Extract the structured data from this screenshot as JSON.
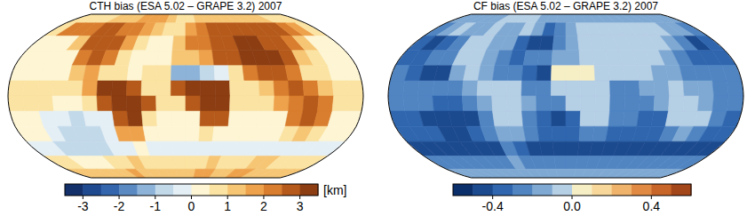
{
  "chart_data": [
    {
      "type": "heatmap",
      "title": "CTH bias (ESA 5.02 – GRAPE 3.2) 2007",
      "x": [
        -172.5,
        -157.5,
        -142.5,
        -127.5,
        -112.5,
        -97.5,
        -82.5,
        -67.5,
        -52.5,
        -37.5,
        -22.5,
        -7.5,
        7.5,
        22.5,
        37.5,
        52.5,
        67.5,
        82.5,
        97.5,
        112.5,
        127.5,
        142.5,
        157.5,
        172.5
      ],
      "y": [
        82.5,
        67.5,
        52.5,
        37.5,
        22.5,
        7.5,
        -7.5,
        -22.5,
        -37.5,
        -52.5,
        -67.5,
        -82.5
      ],
      "values": [
        [
          0.6,
          0.6,
          0.7,
          0.8,
          1.0,
          1.2,
          1.3,
          1.5,
          1.8,
          1.6,
          1.0,
          0.8,
          0.8,
          1.0,
          1.2,
          1.2,
          1.2,
          1.3,
          1.3,
          1.2,
          1.0,
          0.8,
          0.7,
          0.6
        ],
        [
          0.8,
          2.0,
          2.2,
          2.3,
          2.5,
          2.5,
          2.2,
          2.0,
          1.8,
          1.2,
          0.5,
          0.6,
          1.8,
          2.3,
          2.5,
          2.6,
          2.7,
          2.8,
          2.8,
          2.7,
          2.6,
          2.4,
          1.8,
          0.8
        ],
        [
          0.3,
          0.2,
          0.3,
          1.0,
          2.5,
          2.8,
          2.6,
          1.8,
          0.5,
          0.3,
          0.3,
          1.2,
          2.0,
          2.4,
          2.6,
          2.8,
          3.0,
          3.0,
          2.8,
          2.7,
          2.2,
          1.0,
          0.4,
          0.3
        ],
        [
          0.3,
          0.2,
          0.2,
          0.4,
          2.2,
          2.6,
          2.4,
          0.8,
          0.4,
          0.3,
          0.3,
          1.2,
          1.0,
          1.5,
          2.5,
          2.8,
          3.2,
          3.2,
          3.0,
          2.6,
          1.2,
          0.5,
          0.3,
          0.3
        ],
        [
          0.3,
          0.3,
          0.2,
          0.3,
          1.2,
          1.8,
          0.8,
          0.5,
          0.4,
          0.5,
          0.6,
          -1.2,
          -1.5,
          -1.0,
          -0.5,
          0.6,
          2.0,
          2.8,
          2.6,
          2.0,
          0.8,
          0.5,
          0.4,
          0.3
        ],
        [
          0.5,
          0.6,
          0.6,
          0.5,
          0.6,
          1.5,
          3.0,
          3.2,
          2.8,
          0.9,
          0.8,
          2.8,
          3.2,
          3.3,
          3.0,
          0.9,
          0.8,
          1.2,
          2.2,
          2.5,
          2.2,
          1.2,
          0.8,
          0.6
        ],
        [
          0.6,
          0.5,
          0.5,
          0.4,
          0.4,
          0.5,
          2.5,
          3.4,
          3.3,
          2.8,
          0.6,
          0.5,
          2.8,
          3.3,
          3.0,
          0.7,
          0.6,
          0.6,
          1.5,
          2.2,
          2.5,
          2.0,
          0.9,
          0.6
        ],
        [
          0.3,
          0.2,
          -0.3,
          -0.5,
          -0.6,
          -0.5,
          -0.2,
          2.8,
          3.0,
          0.5,
          0.2,
          0.1,
          0.3,
          2.5,
          2.8,
          0.4,
          0.3,
          0.2,
          0.3,
          2.2,
          2.6,
          2.4,
          0.4,
          0.3
        ],
        [
          0.2,
          0.0,
          -0.3,
          -0.6,
          -0.7,
          -0.6,
          -0.4,
          1.5,
          1.8,
          0.3,
          0.2,
          0.2,
          0.3,
          0.5,
          0.4,
          0.3,
          0.3,
          0.2,
          0.3,
          0.5,
          1.2,
          0.6,
          0.3,
          0.2
        ],
        [
          -0.3,
          -0.4,
          -0.6,
          -0.7,
          -0.8,
          -0.7,
          -0.5,
          -0.2,
          0.2,
          -0.2,
          -0.3,
          -0.4,
          -0.4,
          -0.5,
          -0.4,
          -0.3,
          -0.4,
          -0.5,
          -0.5,
          -0.4,
          -0.3,
          -0.2,
          -0.3,
          -0.3
        ],
        [
          0.6,
          0.5,
          0.4,
          0.3,
          0.4,
          0.5,
          0.8,
          1.0,
          0.8,
          0.6,
          0.5,
          0.6,
          0.8,
          0.9,
          1.0,
          0.9,
          0.8,
          0.9,
          1.0,
          1.0,
          0.9,
          0.8,
          0.7,
          0.6
        ],
        [
          1.2,
          1.3,
          1.3,
          1.2,
          1.3,
          1.4,
          1.5,
          1.4,
          1.3,
          1.2,
          1.2,
          1.3,
          1.4,
          1.5,
          1.5,
          1.4,
          1.4,
          1.5,
          1.5,
          1.4,
          1.3,
          1.3,
          1.2,
          1.2
        ]
      ],
      "colorbar": {
        "lim": [
          -3.5,
          3.5
        ],
        "ticks": [
          -3,
          -2,
          -1,
          0,
          1,
          2,
          3
        ],
        "label": "[km]",
        "colors": [
          "#13306b",
          "#1f4a90",
          "#3466ad",
          "#5b8ac2",
          "#8db3d8",
          "#c2d9ea",
          "#e4eff5",
          "#fdf5d3",
          "#fbe3a3",
          "#f6c675",
          "#eea24c",
          "#d97e2e",
          "#b65a1b",
          "#8c3d12"
        ]
      }
    },
    {
      "type": "heatmap",
      "title": "CF bias (ESA 5.02 – GRAPE 3.2) 2007",
      "x": [
        -172.5,
        -157.5,
        -142.5,
        -127.5,
        -112.5,
        -97.5,
        -82.5,
        -67.5,
        -52.5,
        -37.5,
        -22.5,
        -7.5,
        7.5,
        22.5,
        37.5,
        52.5,
        67.5,
        82.5,
        97.5,
        112.5,
        127.5,
        142.5,
        157.5,
        172.5
      ],
      "y": [
        82.5,
        67.5,
        52.5,
        37.5,
        22.5,
        7.5,
        -7.5,
        -22.5,
        -37.5,
        -52.5,
        -67.5,
        -82.5
      ],
      "values": [
        [
          -0.2,
          -0.2,
          -0.2,
          -0.15,
          -0.15,
          -0.1,
          -0.1,
          -0.1,
          -0.1,
          -0.15,
          -0.2,
          -0.2,
          -0.2,
          -0.2,
          -0.15,
          -0.15,
          -0.15,
          -0.15,
          -0.15,
          -0.15,
          -0.2,
          -0.2,
          -0.2,
          -0.2
        ],
        [
          -0.3,
          -0.15,
          -0.1,
          -0.15,
          -0.15,
          -0.1,
          -0.15,
          -0.15,
          -0.1,
          -0.2,
          -0.35,
          -0.3,
          -0.15,
          -0.1,
          -0.1,
          -0.1,
          -0.1,
          -0.1,
          -0.1,
          -0.1,
          -0.1,
          -0.15,
          -0.2,
          -0.3
        ],
        [
          -0.35,
          -0.4,
          -0.35,
          -0.25,
          -0.1,
          -0.1,
          -0.15,
          -0.2,
          -0.35,
          -0.4,
          -0.4,
          -0.25,
          -0.15,
          -0.1,
          -0.1,
          -0.1,
          -0.05,
          -0.05,
          -0.1,
          -0.1,
          -0.15,
          -0.3,
          -0.4,
          -0.35
        ],
        [
          -0.35,
          -0.35,
          -0.3,
          -0.25,
          -0.1,
          -0.1,
          -0.2,
          -0.3,
          -0.35,
          -0.3,
          -0.3,
          -0.2,
          -0.15,
          -0.1,
          -0.05,
          -0.05,
          -0.05,
          -0.05,
          -0.1,
          -0.15,
          -0.3,
          -0.35,
          -0.35,
          -0.35
        ],
        [
          -0.3,
          -0.35,
          -0.4,
          -0.45,
          -0.2,
          -0.1,
          -0.2,
          -0.3,
          -0.3,
          -0.35,
          -0.4,
          0.0,
          0.05,
          0.0,
          -0.05,
          -0.1,
          -0.1,
          -0.05,
          -0.15,
          -0.2,
          -0.3,
          -0.3,
          -0.3,
          -0.3
        ],
        [
          -0.25,
          -0.25,
          -0.3,
          -0.3,
          -0.3,
          -0.2,
          -0.1,
          -0.05,
          -0.1,
          -0.25,
          -0.25,
          -0.1,
          -0.05,
          -0.05,
          -0.1,
          -0.25,
          -0.25,
          -0.2,
          -0.15,
          -0.1,
          -0.15,
          -0.2,
          -0.25,
          -0.25
        ],
        [
          -0.3,
          -0.3,
          -0.3,
          -0.35,
          -0.35,
          -0.3,
          -0.15,
          -0.05,
          -0.05,
          -0.15,
          -0.3,
          -0.3,
          -0.1,
          -0.05,
          -0.1,
          -0.25,
          -0.25,
          -0.25,
          -0.15,
          -0.1,
          -0.1,
          -0.15,
          -0.25,
          -0.3
        ],
        [
          -0.35,
          -0.35,
          -0.4,
          -0.45,
          -0.45,
          -0.4,
          -0.3,
          -0.1,
          -0.05,
          -0.3,
          -0.35,
          -0.4,
          -0.35,
          -0.1,
          -0.1,
          -0.3,
          -0.3,
          -0.35,
          -0.35,
          -0.1,
          -0.05,
          -0.1,
          -0.3,
          -0.35
        ],
        [
          -0.35,
          -0.35,
          -0.35,
          -0.4,
          -0.4,
          -0.35,
          -0.3,
          -0.15,
          -0.15,
          -0.3,
          -0.35,
          -0.35,
          -0.35,
          -0.3,
          -0.3,
          -0.35,
          -0.35,
          -0.35,
          -0.35,
          -0.3,
          -0.2,
          -0.3,
          -0.35,
          -0.35
        ],
        [
          -0.4,
          -0.45,
          -0.45,
          -0.45,
          -0.45,
          -0.45,
          -0.4,
          -0.3,
          -0.35,
          -0.4,
          -0.45,
          -0.45,
          -0.45,
          -0.45,
          -0.45,
          -0.45,
          -0.45,
          -0.45,
          -0.45,
          -0.45,
          -0.4,
          -0.4,
          -0.4,
          -0.4
        ],
        [
          -0.3,
          -0.3,
          -0.25,
          -0.25,
          -0.3,
          -0.3,
          -0.25,
          -0.2,
          -0.25,
          -0.3,
          -0.3,
          -0.3,
          -0.25,
          -0.25,
          -0.3,
          -0.3,
          -0.3,
          -0.25,
          -0.25,
          -0.3,
          -0.3,
          -0.3,
          -0.3,
          -0.3
        ],
        [
          -0.15,
          -0.15,
          -0.15,
          -0.15,
          -0.15,
          -0.15,
          -0.15,
          -0.15,
          -0.15,
          -0.15,
          -0.15,
          -0.15,
          -0.15,
          -0.15,
          -0.15,
          -0.15,
          -0.15,
          -0.15,
          -0.15,
          -0.15,
          -0.15,
          -0.15,
          -0.15,
          -0.15
        ]
      ],
      "colorbar": {
        "lim": [
          -0.6,
          0.6
        ],
        "ticks": [
          -0.4,
          {
            "value": 0,
            "label": "0.0"
          },
          0.4
        ],
        "colors": [
          "#0b2f6b",
          "#1c4a8f",
          "#2f66ae",
          "#5085c2",
          "#7fa9d3",
          "#b5cfe5",
          "#f6efc6",
          "#f7d79a",
          "#f0b36b",
          "#e08a43",
          "#c86528",
          "#a3461a"
        ]
      }
    }
  ]
}
